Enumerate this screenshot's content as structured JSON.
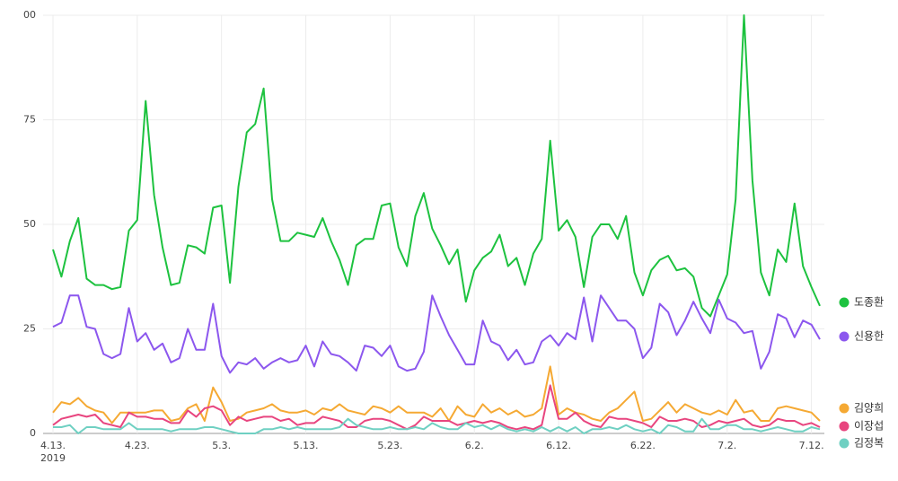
{
  "chart_data": {
    "type": "line",
    "year_label": "2019",
    "categories": [
      "4.13.",
      null,
      null,
      null,
      null,
      null,
      null,
      null,
      null,
      null,
      "4.23.",
      null,
      null,
      null,
      null,
      null,
      null,
      null,
      null,
      null,
      "5.3.",
      null,
      null,
      null,
      null,
      null,
      null,
      null,
      null,
      null,
      "5.13.",
      null,
      null,
      null,
      null,
      null,
      null,
      null,
      null,
      null,
      "5.23.",
      null,
      null,
      null,
      null,
      null,
      null,
      null,
      null,
      null,
      "6.2.",
      null,
      null,
      null,
      null,
      null,
      null,
      null,
      null,
      null,
      "6.12.",
      null,
      null,
      null,
      null,
      null,
      null,
      null,
      null,
      null,
      "6.22.",
      null,
      null,
      null,
      null,
      null,
      null,
      null,
      null,
      null,
      "7.2.",
      null,
      null,
      null,
      null,
      null,
      null,
      null,
      null,
      null,
      "7.12.",
      null
    ],
    "ylim": [
      0,
      100
    ],
    "yticks": [
      0,
      25,
      50,
      75,
      {
        "value": 100,
        "label": "00"
      }
    ],
    "grid": true,
    "series": [
      {
        "name": "도종환",
        "color": "#1dc23f",
        "values": [
          44,
          37.5,
          46,
          51.5,
          37,
          35.5,
          35.5,
          34.5,
          35,
          48.5,
          51,
          79.5,
          57,
          44.5,
          35.5,
          36,
          45,
          44.5,
          43,
          54,
          54.5,
          36,
          59,
          72,
          74,
          82.5,
          56,
          46,
          46,
          48,
          47.5,
          47,
          51.5,
          46,
          41.5,
          35.5,
          45,
          46.5,
          46.5,
          54.5,
          55,
          44.5,
          40,
          52,
          57.5,
          49,
          45,
          40.5,
          44,
          31.5,
          39,
          42,
          43.5,
          47.5,
          40,
          42,
          35.5,
          43,
          46.5,
          70,
          48.5,
          51,
          47,
          35,
          47,
          50,
          50,
          46.5,
          52,
          38.5,
          33,
          39,
          41.5,
          42.5,
          39,
          39.5,
          37.5,
          30,
          28,
          33,
          38,
          56,
          100,
          60.5,
          38.5,
          33,
          44,
          41,
          55,
          40,
          35,
          30.5
        ]
      },
      {
        "name": "신용한",
        "color": "#8c57ee",
        "values": [
          25.5,
          26.5,
          33,
          33,
          25.5,
          25,
          19,
          18,
          19,
          30,
          22,
          24,
          20,
          21.5,
          17,
          18,
          25,
          20,
          20,
          31,
          18.5,
          14.5,
          17,
          16.5,
          18,
          15.5,
          17,
          18,
          17,
          17.5,
          21,
          16,
          22,
          19,
          18.5,
          17,
          15,
          21,
          20.5,
          18.5,
          21,
          16,
          15,
          15.5,
          19.5,
          33,
          28,
          23.5,
          20,
          16.5,
          16.5,
          27,
          22,
          21,
          17.5,
          20,
          16.5,
          17,
          22,
          23.5,
          21,
          24,
          22.5,
          32.5,
          22,
          33,
          30,
          27,
          27,
          25,
          18,
          20.5,
          31,
          29,
          23.5,
          27,
          31.5,
          27.5,
          24,
          32,
          27.5,
          26.5,
          24,
          24.5,
          15.5,
          19.5,
          28.5,
          27.5,
          23,
          27,
          26,
          22.5
        ]
      },
      {
        "name": "김양희",
        "color": "#f5a933",
        "values": [
          5,
          7.5,
          7,
          8.5,
          6.5,
          5.5,
          5,
          2.5,
          5,
          5,
          5,
          5,
          5.5,
          5.5,
          3,
          3.5,
          6,
          7,
          3,
          11,
          7.5,
          3,
          3.5,
          5,
          5.5,
          6,
          7,
          5.5,
          5,
          5,
          5.5,
          4.5,
          6,
          5.5,
          7,
          5.5,
          5,
          4.5,
          6.5,
          6,
          5,
          6.5,
          5,
          5,
          5,
          4,
          6,
          3,
          6.5,
          4.5,
          4,
          7,
          5,
          6,
          4.5,
          5.5,
          4,
          4.5,
          6,
          16,
          4.5,
          6,
          5,
          4.5,
          3.5,
          3,
          5,
          6,
          8,
          10,
          3,
          3.5,
          5.5,
          7.5,
          5,
          7,
          6,
          5,
          4.5,
          5.5,
          4.5,
          8,
          5,
          5.5,
          3,
          3,
          6,
          6.5,
          6,
          5.5,
          5,
          3
        ]
      },
      {
        "name": "이장섭",
        "color": "#e8457f",
        "values": [
          2,
          3.5,
          4,
          4.5,
          4,
          4.5,
          2.5,
          2,
          1.5,
          5,
          4,
          4,
          3.5,
          3.5,
          2.5,
          2.5,
          5.5,
          4,
          6,
          6.5,
          5.5,
          2,
          4,
          3,
          3.5,
          4,
          4,
          3,
          3.5,
          2,
          2.5,
          2.5,
          4,
          3.5,
          3,
          1.5,
          1.5,
          3,
          3.5,
          3.5,
          3,
          2,
          1,
          2,
          4,
          3,
          3,
          3,
          2,
          2.5,
          3,
          2.5,
          3,
          2.5,
          1.5,
          1,
          1.5,
          1,
          2,
          11.5,
          3.5,
          3.5,
          5,
          3,
          2,
          1.5,
          4,
          3.5,
          3.5,
          3,
          2.5,
          1.5,
          4,
          3,
          3,
          3.5,
          3,
          1.5,
          2,
          3,
          2.5,
          3,
          3.5,
          2,
          1.5,
          2,
          3.5,
          3,
          3,
          2,
          2.5,
          1.5
        ]
      },
      {
        "name": "김정복",
        "color": "#6fd0c2",
        "values": [
          1.5,
          1.5,
          2,
          0,
          1.5,
          1.5,
          1,
          1,
          1,
          2.5,
          1,
          1,
          1,
          1,
          0.5,
          1,
          1,
          1,
          1.5,
          1.5,
          1,
          0.5,
          0,
          0,
          0,
          1,
          1,
          1.5,
          1,
          1.5,
          1,
          1,
          1,
          1,
          1.5,
          3.5,
          2,
          1.5,
          1,
          1,
          1.5,
          1,
          1,
          1.5,
          1,
          2.5,
          1.5,
          1,
          1,
          2.5,
          1.5,
          2,
          1,
          2,
          1,
          0.5,
          1,
          0.5,
          1.5,
          0.5,
          1.5,
          0.5,
          1.5,
          0,
          1,
          1,
          1.5,
          1,
          2,
          1,
          0.5,
          1,
          0,
          2,
          1.5,
          0.5,
          0.5,
          3.5,
          1,
          1,
          2,
          2,
          1,
          1,
          0.5,
          1,
          1.5,
          1,
          0.5,
          0.5,
          1.5,
          1
        ]
      }
    ]
  }
}
